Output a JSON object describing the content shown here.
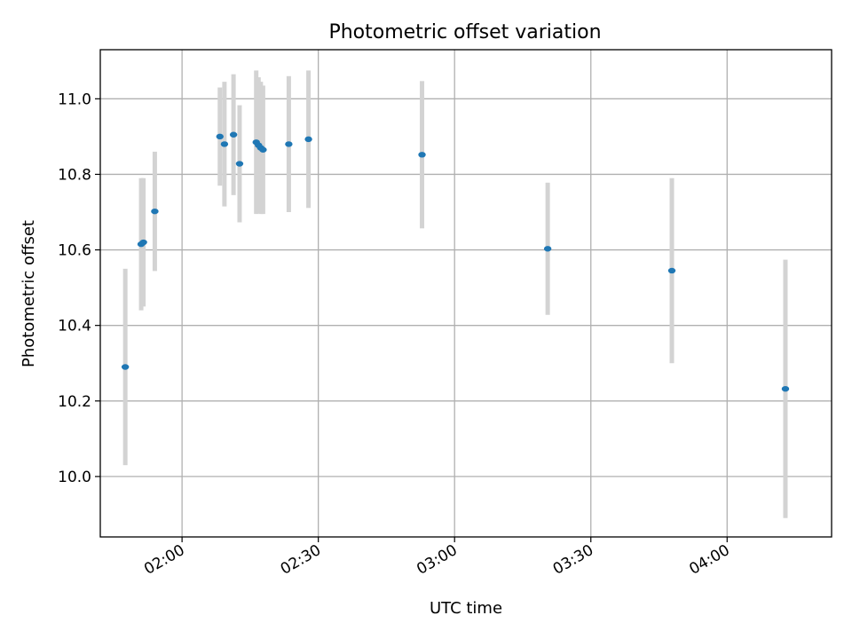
{
  "chart_data": {
    "type": "scatter",
    "title": "Photometric offset variation",
    "xlabel": "UTC time",
    "ylabel": "Photometric offset",
    "x_axis_type": "time",
    "xlim": [
      "01:42",
      "04:23"
    ],
    "ylim": [
      9.84,
      11.13
    ],
    "grid": true,
    "x_ticks": [
      "02:00",
      "02:30",
      "03:00",
      "03:30",
      "04:00"
    ],
    "y_ticks": [
      10.0,
      10.2,
      10.4,
      10.6,
      10.8,
      11.0
    ],
    "y_tick_labels": [
      "10.0",
      "10.2",
      "10.4",
      "10.6",
      "10.8",
      "11.0"
    ],
    "point_color": "#1f77b4",
    "error_bar_color": "#d3d3d3",
    "points": [
      {
        "time": "01:47:30",
        "y": 10.29,
        "yerr": 0.26
      },
      {
        "time": "01:51:00",
        "y": 10.615,
        "yerr": 0.175
      },
      {
        "time": "01:51:30",
        "y": 10.62,
        "yerr": 0.17
      },
      {
        "time": "01:54:00",
        "y": 10.702,
        "yerr": 0.158
      },
      {
        "time": "02:08:20",
        "y": 10.9,
        "yerr": 0.13
      },
      {
        "time": "02:09:20",
        "y": 10.88,
        "yerr": 0.165
      },
      {
        "time": "02:11:20",
        "y": 10.905,
        "yerr": 0.16
      },
      {
        "time": "02:12:40",
        "y": 10.828,
        "yerr": 0.155
      },
      {
        "time": "02:16:20",
        "y": 10.885,
        "yerr": 0.19
      },
      {
        "time": "02:16:50",
        "y": 10.877,
        "yerr": 0.18
      },
      {
        "time": "02:17:20",
        "y": 10.87,
        "yerr": 0.175
      },
      {
        "time": "02:17:50",
        "y": 10.865,
        "yerr": 0.17
      },
      {
        "time": "02:23:30",
        "y": 10.88,
        "yerr": 0.18
      },
      {
        "time": "02:27:50",
        "y": 10.893,
        "yerr": 0.182
      },
      {
        "time": "02:52:50",
        "y": 10.852,
        "yerr": 0.195
      },
      {
        "time": "03:20:30",
        "y": 10.603,
        "yerr": 0.175
      },
      {
        "time": "03:47:50",
        "y": 10.545,
        "yerr": 0.245
      },
      {
        "time": "04:12:50",
        "y": 10.232,
        "yerr": 0.342
      }
    ]
  }
}
